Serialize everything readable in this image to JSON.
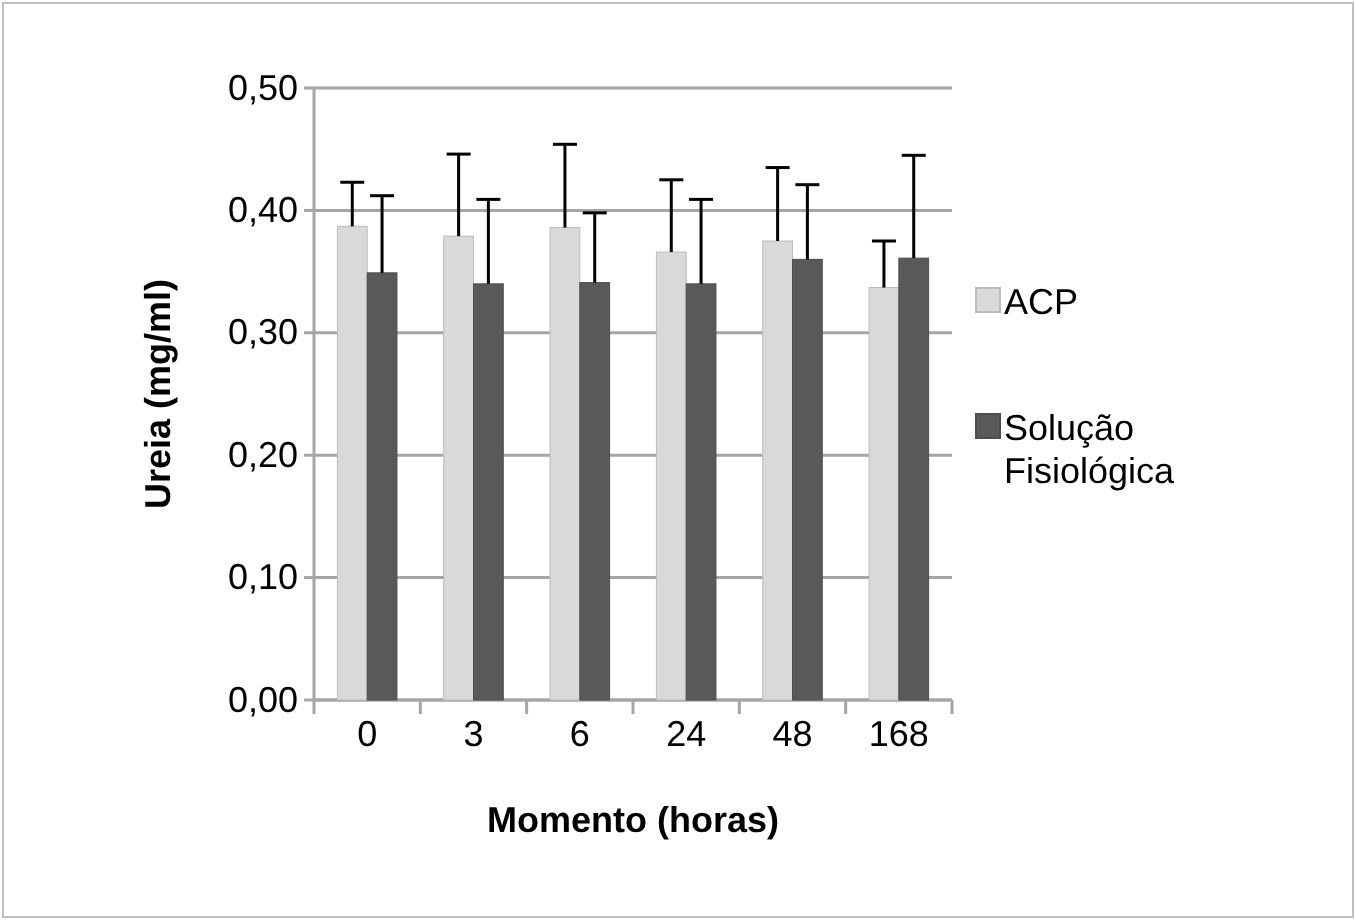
{
  "chart_data": {
    "type": "bar",
    "xlabel": "Momento (horas)",
    "ylabel": "Ureia (mg/ml)",
    "categories": [
      "0",
      "3",
      "6",
      "24",
      "48",
      "168"
    ],
    "series": [
      {
        "name": "ACP",
        "color": "#d9d9d9",
        "values": [
          0.387,
          0.379,
          0.386,
          0.366,
          0.375,
          0.337
        ],
        "errors": [
          [
            0.387,
            0.423
          ],
          [
            0.379,
            0.446
          ],
          [
            0.386,
            0.454
          ],
          [
            0.366,
            0.425
          ],
          [
            0.375,
            0.435
          ],
          [
            0.337,
            0.375
          ]
        ]
      },
      {
        "name": "Solução Fisiológica",
        "color": "#595959",
        "values": [
          0.349,
          0.34,
          0.341,
          0.34,
          0.36,
          0.361
        ],
        "errors": [
          [
            0.349,
            0.412
          ],
          [
            0.34,
            0.409
          ],
          [
            0.341,
            0.398
          ],
          [
            0.34,
            0.409
          ],
          [
            0.36,
            0.421
          ],
          [
            0.361,
            0.445
          ]
        ]
      }
    ],
    "ylim": [
      0,
      0.5
    ],
    "yticks": [
      {
        "value": 0,
        "label": "0,00"
      },
      {
        "value": 0.1,
        "label": "0,10"
      },
      {
        "value": 0.2,
        "label": "0,20"
      },
      {
        "value": 0.3,
        "label": "0,30"
      },
      {
        "value": 0.4,
        "label": "0,40"
      },
      {
        "value": 0.5,
        "label": "0,50"
      }
    ],
    "grid": "y",
    "legend": "right"
  }
}
